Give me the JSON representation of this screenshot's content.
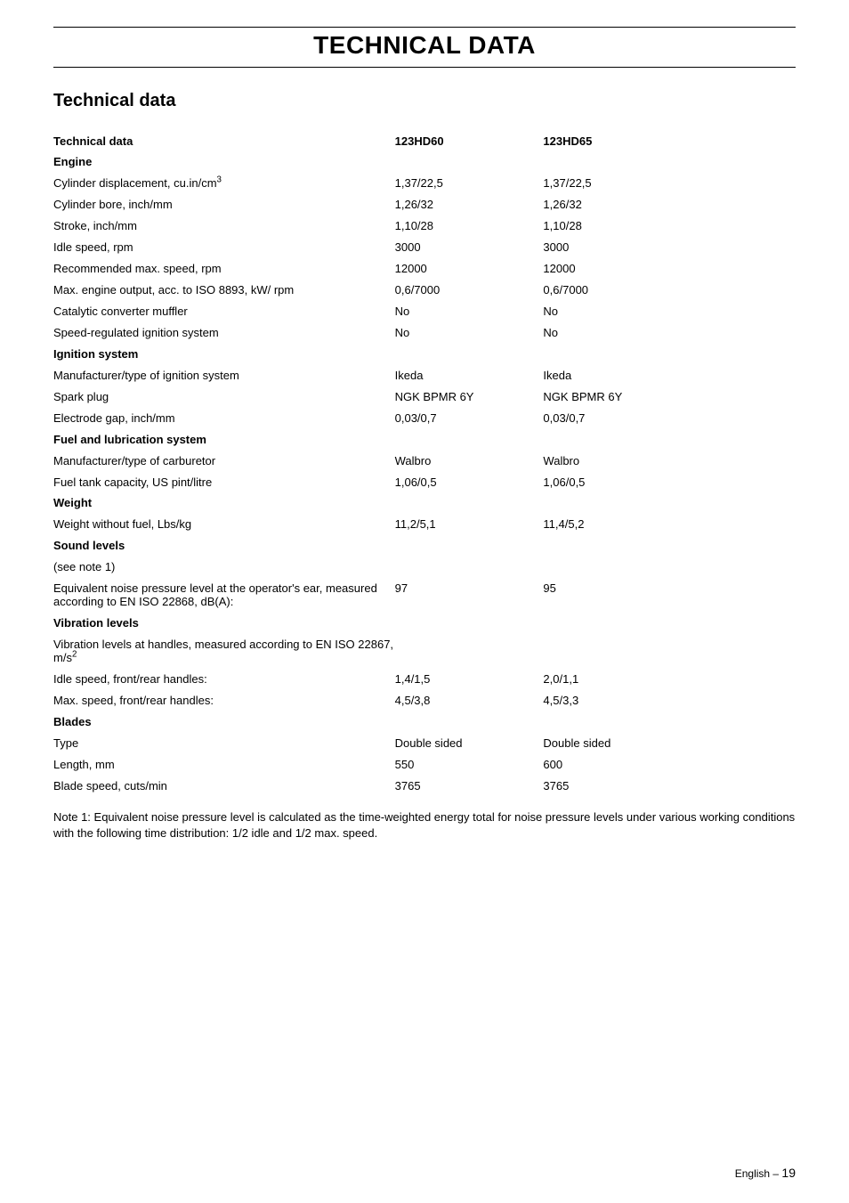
{
  "header": {
    "main_title": "TECHNICAL DATA",
    "section_title": "Technical data"
  },
  "columns": {
    "label_header": "Technical data",
    "model1": "123HD60",
    "model2": "123HD65"
  },
  "sections": [
    {
      "heading": "Engine",
      "rows": [
        {
          "label": "Cylinder displacement, cu.in/cm",
          "sup": "3",
          "v1": "1,37/22,5",
          "v2": "1,37/22,5"
        },
        {
          "label": "Cylinder bore, inch/mm",
          "v1": "1,26/32",
          "v2": "1,26/32"
        },
        {
          "label": "Stroke, inch/mm",
          "v1": "1,10/28",
          "v2": "1,10/28"
        },
        {
          "label": "Idle speed, rpm",
          "v1": "3000",
          "v2": "3000"
        },
        {
          "label": "Recommended max. speed, rpm",
          "v1": "12000",
          "v2": "12000"
        },
        {
          "label": "Max. engine output, acc. to ISO 8893, kW/ rpm",
          "v1": "0,6/7000",
          "v2": "0,6/7000"
        },
        {
          "label": "Catalytic converter muffler",
          "v1": "No",
          "v2": "No"
        },
        {
          "label": "Speed-regulated ignition system",
          "v1": "No",
          "v2": "No"
        }
      ]
    },
    {
      "heading": "Ignition system",
      "rows": [
        {
          "label": "Manufacturer/type of ignition system",
          "v1": "Ikeda",
          "v2": "Ikeda"
        },
        {
          "label": "Spark plug",
          "v1": "NGK BPMR 6Y",
          "v2": "NGK BPMR 6Y"
        },
        {
          "label": "Electrode gap, inch/mm",
          "v1": "0,03/0,7",
          "v2": "0,03/0,7"
        }
      ]
    },
    {
      "heading": "Fuel and lubrication system",
      "rows": [
        {
          "label": "Manufacturer/type of carburetor",
          "v1": "Walbro",
          "v2": "Walbro"
        },
        {
          "label": "Fuel tank capacity, US pint/litre",
          "v1": "1,06/0,5",
          "v2": "1,06/0,5"
        }
      ]
    },
    {
      "heading": "Weight",
      "rows": [
        {
          "label": "Weight without fuel, Lbs/kg",
          "v1": "11,2/5,1",
          "v2": "11,4/5,2"
        }
      ]
    },
    {
      "heading": "Sound levels",
      "rows": [
        {
          "label": "(see note 1)",
          "v1": "",
          "v2": ""
        },
        {
          "label": "Equivalent noise pressure level at the operator's ear, measured according to EN ISO 22868, dB(A):",
          "v1": "97",
          "v2": "95"
        }
      ]
    },
    {
      "heading": "Vibration levels",
      "rows": [
        {
          "label": "Vibration levels at handles, measured according to EN ISO 22867, m/s",
          "sup": "2",
          "v1": "",
          "v2": ""
        },
        {
          "label": "Idle speed, front/rear handles:",
          "v1": "1,4/1,5",
          "v2": "2,0/1,1"
        },
        {
          "label": "Max. speed, front/rear handles:",
          "v1": "4,5/3,8",
          "v2": "4,5/3,3"
        }
      ]
    },
    {
      "heading": "Blades",
      "rows": [
        {
          "label": "Type",
          "v1": "Double sided",
          "v2": "Double sided"
        },
        {
          "label": "Length, mm",
          "v1": "550",
          "v2": "600"
        },
        {
          "label": "Blade speed, cuts/min",
          "v1": "3765",
          "v2": "3765"
        }
      ]
    }
  ],
  "note": "Note 1: Equivalent noise pressure level is calculated as the time-weighted energy total for noise pressure levels under various working conditions with the following time distribution: 1/2 idle and 1/2 max. speed.",
  "footer": {
    "lang": "English",
    "dash": " – ",
    "page": "19"
  }
}
